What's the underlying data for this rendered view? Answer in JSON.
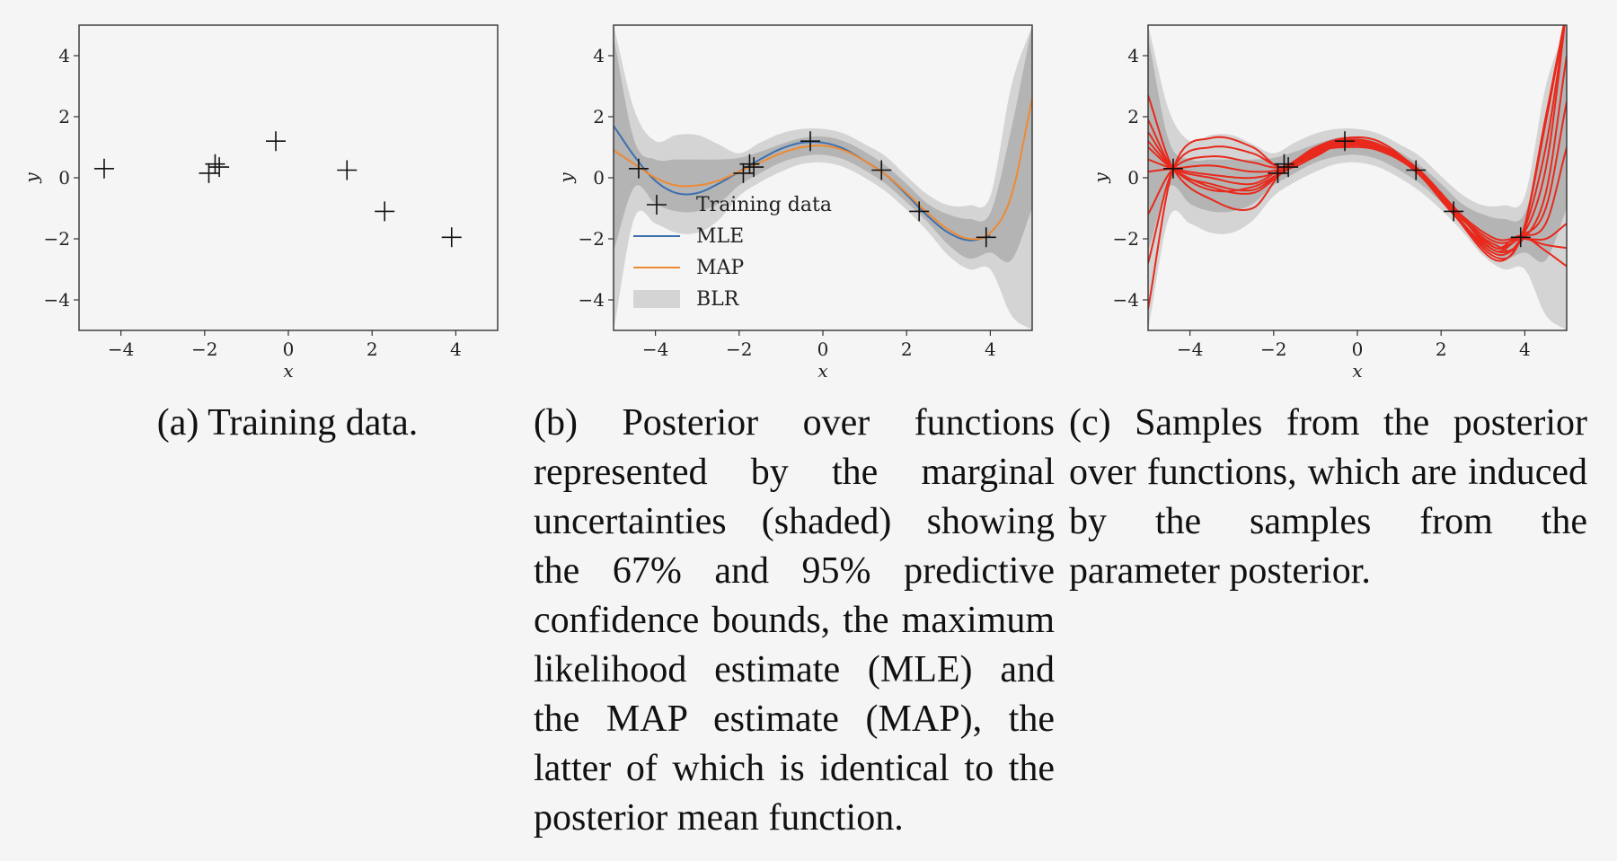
{
  "colors": {
    "mle": "#3b6fb0",
    "map": "#ee8a33",
    "blr_inner": "#b4b4b4",
    "blr_outer": "#d4d4d4",
    "samples": "#e8291c",
    "data": "#111111"
  },
  "captions": {
    "a": "(a) Training data.",
    "b": "(b) Posterior over functions represented by the marginal uncertainties (shaded) showing the 67% and 95% predictive confidence bounds, the maximum likelihood estimate (MLE) and the MAP estimate (MAP), the latter of which is identical to the posterior mean function.",
    "c": "(c) Samples from the posterior over functions, which are induced by the samples from the parameter posterior."
  },
  "chart_data": [
    {
      "type": "scatter",
      "xlabel": "x",
      "ylabel": "y",
      "xlim": [
        -5,
        5
      ],
      "ylim": [
        -5,
        5
      ],
      "xticks": [
        "−4",
        "−2",
        "0",
        "2",
        "4"
      ],
      "yticks": [
        "4",
        "2",
        "0",
        "−2",
        "−4"
      ],
      "legend": [],
      "series": [
        {
          "name": "",
          "x": [
            -4.4,
            -1.9,
            -1.75,
            -1.65,
            -0.3,
            1.4,
            2.3,
            3.9
          ],
          "y": [
            0.3,
            0.15,
            0.45,
            0.35,
            1.2,
            0.25,
            -1.1,
            -1.95
          ]
        }
      ]
    },
    {
      "type": "line",
      "xlabel": "x",
      "ylabel": "y",
      "xlim": [
        -5,
        5
      ],
      "ylim": [
        -5,
        5
      ],
      "xticks": [
        "−4",
        "−2",
        "0",
        "2",
        "4"
      ],
      "yticks": [
        "4",
        "2",
        "0",
        "−2",
        "−4"
      ],
      "legend": [
        "Training data",
        "MLE",
        "MAP",
        "BLR"
      ],
      "legend_location": "lower-left",
      "series": [
        {
          "name": "Training data",
          "x": [
            -4.4,
            -1.9,
            -1.75,
            -1.65,
            -0.3,
            1.4,
            2.3,
            3.9
          ],
          "y": [
            0.3,
            0.15,
            0.45,
            0.35,
            1.2,
            0.25,
            -1.1,
            -1.95
          ]
        },
        {
          "name": "MLE",
          "x": [
            -5,
            -4.5,
            -4,
            -3.5,
            -3,
            -2.5,
            -2,
            -1.5,
            -1,
            -0.5,
            0,
            0.5,
            1,
            1.5,
            2,
            2.5,
            3,
            3.5,
            4
          ],
          "y": [
            1.7,
            0.7,
            -0.1,
            -0.5,
            -0.5,
            -0.2,
            0.2,
            0.6,
            0.95,
            1.15,
            1.15,
            0.95,
            0.55,
            0.1,
            -0.55,
            -1.25,
            -1.8,
            -2.05,
            -1.9
          ]
        },
        {
          "name": "MAP",
          "x": [
            -5,
            -4.5,
            -4,
            -3.5,
            -3,
            -2.5,
            -2,
            -1.5,
            -1,
            -0.5,
            0,
            0.5,
            1,
            1.5,
            2,
            2.5,
            3,
            3.5,
            4,
            4.5,
            5
          ],
          "y": [
            0.9,
            0.45,
            0.0,
            -0.25,
            -0.25,
            -0.1,
            0.2,
            0.5,
            0.8,
            1.0,
            1.05,
            0.9,
            0.55,
            0.1,
            -0.5,
            -1.15,
            -1.7,
            -2.0,
            -1.8,
            -0.6,
            2.6
          ]
        },
        {
          "name": "BLR",
          "x": [
            -5,
            -4.5,
            -4,
            -3.5,
            -3,
            -2.5,
            -2,
            -1.5,
            -1,
            -0.5,
            0,
            0.5,
            1,
            1.5,
            2,
            2.5,
            3,
            3.5,
            4,
            4.5,
            5
          ],
          "lower95": [
            -5,
            -1.3,
            -1.5,
            -1.8,
            -1.8,
            -1.4,
            -0.6,
            -0.15,
            0.2,
            0.45,
            0.5,
            0.35,
            0.0,
            -0.45,
            -1.05,
            -1.75,
            -2.55,
            -3.0,
            -3.0,
            -4.5,
            -5
          ],
          "upper95": [
            5,
            2.2,
            1.2,
            1.4,
            1.4,
            1.1,
            0.8,
            1.15,
            1.45,
            1.6,
            1.6,
            1.45,
            1.1,
            0.7,
            0.05,
            -0.55,
            -0.9,
            -0.9,
            -0.6,
            3.0,
            5
          ],
          "lower67": [
            -2.4,
            -0.3,
            -0.85,
            -1.1,
            -1.1,
            -0.85,
            -0.25,
            0.15,
            0.5,
            0.7,
            0.75,
            0.6,
            0.25,
            -0.2,
            -0.8,
            -1.45,
            -2.2,
            -2.65,
            -2.45,
            -2.7,
            -1.0
          ],
          "upper67": [
            4.6,
            1.2,
            0.6,
            0.6,
            0.6,
            0.6,
            0.65,
            0.85,
            1.1,
            1.3,
            1.35,
            1.2,
            0.85,
            0.4,
            -0.2,
            -0.85,
            -1.2,
            -1.35,
            -1.15,
            1.6,
            5
          ]
        }
      ]
    },
    {
      "type": "line",
      "xlabel": "x",
      "ylabel": "y",
      "xlim": [
        -5,
        5
      ],
      "ylim": [
        -5,
        5
      ],
      "xticks": [
        "−4",
        "−2",
        "0",
        "2",
        "4"
      ],
      "yticks": [
        "4",
        "2",
        "0",
        "−2",
        "−4"
      ],
      "legend": [],
      "band": {
        "x": [
          -5,
          -4.5,
          -4,
          -3.5,
          -3,
          -2.5,
          -2,
          -1.5,
          -1,
          -0.5,
          0,
          0.5,
          1,
          1.5,
          2,
          2.5,
          3,
          3.5,
          4,
          4.5,
          5
        ],
        "lower95": [
          -5,
          -1.3,
          -1.5,
          -1.8,
          -1.8,
          -1.4,
          -0.6,
          -0.15,
          0.2,
          0.45,
          0.5,
          0.35,
          0.0,
          -0.45,
          -1.05,
          -1.75,
          -2.55,
          -3.0,
          -3.0,
          -4.5,
          -5
        ],
        "upper95": [
          5,
          2.2,
          1.2,
          1.4,
          1.4,
          1.1,
          0.8,
          1.15,
          1.45,
          1.6,
          1.6,
          1.45,
          1.1,
          0.7,
          0.05,
          -0.55,
          -0.9,
          -0.9,
          -0.6,
          3.0,
          5
        ],
        "lower67": [
          -2.4,
          -0.3,
          -0.85,
          -1.1,
          -1.1,
          -0.85,
          -0.25,
          0.15,
          0.5,
          0.7,
          0.75,
          0.6,
          0.25,
          -0.2,
          -0.8,
          -1.45,
          -2.2,
          -2.65,
          -2.45,
          -2.7,
          -1.0
        ],
        "upper67": [
          4.6,
          1.2,
          0.6,
          0.6,
          0.6,
          0.6,
          0.65,
          0.85,
          1.1,
          1.3,
          1.35,
          1.2,
          0.85,
          0.4,
          -0.2,
          -0.85,
          -1.2,
          -1.35,
          -1.15,
          1.6,
          5
        ]
      },
      "series": [
        {
          "name": "Training data",
          "x": [
            -4.4,
            -1.9,
            -1.75,
            -1.65,
            -0.3,
            1.4,
            2.3,
            3.9
          ],
          "y": [
            0.3,
            0.15,
            0.45,
            0.35,
            1.2,
            0.25,
            -1.1,
            -1.95
          ]
        },
        {
          "name": "",
          "x": [
            -5,
            -4.4,
            -3.5,
            -2.5,
            -1.8,
            -1,
            -0.3,
            0.5,
            1.4,
            2.3,
            3.3,
            3.9,
            4.5,
            5
          ],
          "y": [
            1.0,
            0.3,
            0.0,
            -0.2,
            0.3,
            0.8,
            1.1,
            0.9,
            0.25,
            -1.1,
            -2.2,
            -2.0,
            2.0,
            5.5
          ]
        },
        {
          "name": "",
          "x": [
            -5,
            -4.4,
            -3.5,
            -2.5,
            -1.8,
            -1,
            -0.3,
            0.5,
            1.4,
            2.3,
            3.3,
            3.9,
            4.5,
            5
          ],
          "y": [
            -4.3,
            0.3,
            1.3,
            1.0,
            0.3,
            0.7,
            1.2,
            1.1,
            0.3,
            -1.0,
            -2.4,
            -2.0,
            -2.2,
            -2.3
          ]
        },
        {
          "name": "",
          "x": [
            -5,
            -4.4,
            -3.5,
            -2.5,
            -1.8,
            -1,
            -0.3,
            0.5,
            1.4,
            2.3,
            3.3,
            3.9,
            4.5,
            5
          ],
          "y": [
            2.7,
            0.3,
            -0.7,
            -1.0,
            0.2,
            0.9,
            1.15,
            1.0,
            0.25,
            -1.2,
            -2.7,
            -2.0,
            1.0,
            5.5
          ]
        },
        {
          "name": "",
          "x": [
            -5,
            -4.4,
            -3.5,
            -2.5,
            -1.8,
            -1,
            -0.3,
            0.5,
            1.4,
            2.3,
            3.3,
            3.9,
            4.5,
            5
          ],
          "y": [
            -1.2,
            0.3,
            0.7,
            0.5,
            0.35,
            1.0,
            1.3,
            1.2,
            0.3,
            -1.0,
            -2.3,
            -1.9,
            -2.4,
            -2.9
          ]
        },
        {
          "name": "",
          "x": [
            -5,
            -4.4,
            -3.5,
            -2.5,
            -1.8,
            -1,
            -0.3,
            0.5,
            1.4,
            2.3,
            3.3,
            3.9,
            4.5,
            5
          ],
          "y": [
            1.5,
            0.3,
            -0.4,
            -0.3,
            0.2,
            0.85,
            1.1,
            0.95,
            0.2,
            -1.15,
            -2.5,
            -2.0,
            0.3,
            5.5
          ]
        },
        {
          "name": "",
          "x": [
            -5,
            -4.4,
            -3.5,
            -2.5,
            -1.8,
            -1,
            -0.3,
            0.5,
            1.4,
            2.3,
            3.3,
            3.9,
            4.5,
            5
          ],
          "y": [
            0.2,
            0.3,
            0.4,
            0.2,
            0.3,
            0.9,
            1.2,
            1.05,
            0.25,
            -1.05,
            -2.1,
            -1.9,
            -1.0,
            2.5
          ]
        },
        {
          "name": "",
          "x": [
            -5,
            -4.4,
            -3.5,
            -2.5,
            -1.8,
            -1,
            -0.3,
            0.5,
            1.4,
            2.3,
            3.3,
            3.9,
            4.5,
            5
          ],
          "y": [
            1.9,
            0.3,
            -0.2,
            -0.4,
            0.2,
            0.85,
            1.0,
            0.9,
            0.2,
            -1.2,
            -2.4,
            -2.1,
            -0.5,
            4.0
          ]
        },
        {
          "name": "",
          "x": [
            -5,
            -4.4,
            -3.5,
            -2.5,
            -1.8,
            -1,
            -0.3,
            0.5,
            1.4,
            2.3,
            3.3,
            3.9,
            4.5,
            5
          ],
          "y": [
            0.6,
            0.3,
            0.1,
            0.0,
            0.25,
            0.95,
            1.25,
            1.1,
            0.3,
            -1.0,
            -2.0,
            -1.9,
            -1.5,
            1.0
          ]
        },
        {
          "name": "",
          "x": [
            -5,
            -4.4,
            -3.5,
            -2.5,
            -1.8,
            -1,
            -0.3,
            0.5,
            1.4,
            2.3,
            3.3,
            3.9,
            4.5,
            5
          ],
          "y": [
            -2.8,
            0.3,
            1.0,
            0.8,
            0.35,
            0.75,
            1.15,
            1.05,
            0.35,
            -0.95,
            -2.3,
            -2.0,
            -2.0,
            -1.5
          ]
        },
        {
          "name": "",
          "x": [
            -5,
            -4.4,
            -3.5,
            -2.5,
            -1.8,
            -1,
            -0.3,
            0.5,
            1.4,
            2.3,
            3.3,
            3.9,
            4.5,
            5
          ],
          "y": [
            1.2,
            0.3,
            -0.3,
            -0.5,
            0.15,
            0.8,
            1.05,
            0.95,
            0.2,
            -1.15,
            -2.6,
            -2.0,
            1.8,
            5.5
          ]
        }
      ]
    }
  ]
}
